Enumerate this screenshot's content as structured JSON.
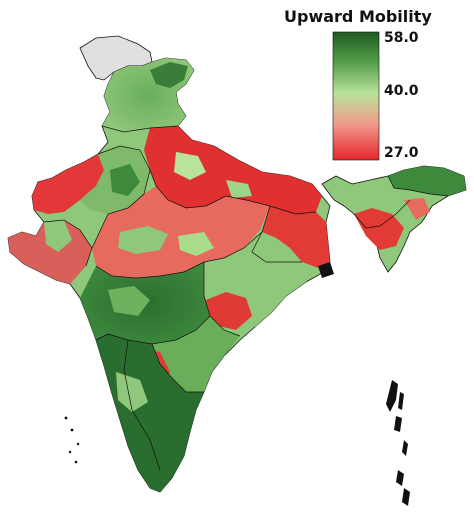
{
  "legend": {
    "title": "Upward Mobility",
    "max_label": "58.0",
    "mid_label": "40.0",
    "min_label": "27.0",
    "color_high": "#1f5b24",
    "color_mid": "#b7e39a",
    "color_low": "#e3262b"
  },
  "map": {
    "subject": "India district-level upward mobility choropleth",
    "no_data_color": "#e0e0e0",
    "border_color": "#111111",
    "scale_min": 27.0,
    "scale_mid": 40.0,
    "scale_max": 58.0
  }
}
